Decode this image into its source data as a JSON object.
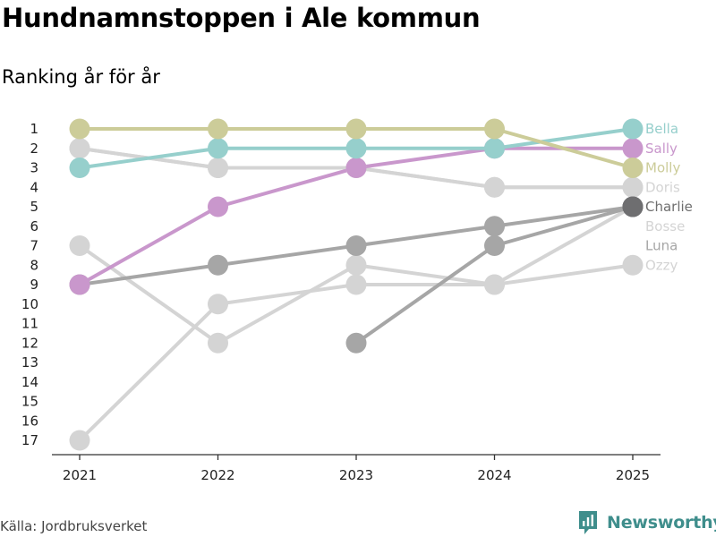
{
  "title": "Hundnamnstoppen i Ale kommun",
  "subtitle": "Ranking år för år",
  "source": "Källa: Jordbruksverket",
  "brand": {
    "name": "Newsworthy",
    "color": "#3f8e8c"
  },
  "chart_data": {
    "type": "line",
    "chart_kind": "bump",
    "x": [
      "2021",
      "2022",
      "2023",
      "2024",
      "2025"
    ],
    "y_ticks": [
      1,
      2,
      3,
      4,
      5,
      6,
      7,
      8,
      9,
      10,
      11,
      12,
      13,
      14,
      15,
      16,
      17
    ],
    "ylim": [
      1,
      17
    ],
    "y_reversed": true,
    "grid": false,
    "series": [
      {
        "name": "Ozzy",
        "values": [
          17,
          10,
          9,
          9,
          8
        ],
        "color": "#d4d4d4"
      },
      {
        "name": "Luna",
        "values": [
          7,
          12,
          8,
          9,
          5
        ],
        "color": "#d4d4d4"
      },
      {
        "name": "Bosse",
        "values": [
          2,
          3,
          3,
          4,
          4
        ],
        "color": "#d4d4d4"
      },
      {
        "name": "Doris",
        "values": [
          2,
          3,
          3,
          4,
          4
        ],
        "color": "#d4d4d4"
      },
      {
        "name": "Charlie",
        "values": [
          9,
          8,
          7,
          6,
          5
        ],
        "color": "#a6a6a6"
      },
      {
        "name": "",
        "values": [
          null,
          null,
          12,
          7,
          5
        ],
        "color": "#a6a6a6"
      },
      {
        "name": "Sally",
        "values": [
          9,
          5,
          3,
          2,
          2
        ],
        "color": "#c997cc"
      },
      {
        "name": "Bella",
        "values": [
          3,
          2,
          2,
          2,
          1
        ],
        "color": "#96cfcc"
      },
      {
        "name": "Molly",
        "values": [
          1,
          1,
          1,
          1,
          3
        ],
        "color": "#cccc99"
      }
    ],
    "end_labels": [
      {
        "text": "Bella",
        "rank": 1,
        "color": "#96cfcc"
      },
      {
        "text": "Sally",
        "rank": 2,
        "color": "#c997cc"
      },
      {
        "text": "Molly",
        "rank": 3,
        "color": "#cccc99"
      },
      {
        "text": "Doris",
        "rank": 4,
        "color": "#d4d4d4"
      },
      {
        "text": "Charlie",
        "rank": 5,
        "color": "#6e6e6e"
      },
      {
        "text": "Bosse",
        "rank": 6,
        "color": "#d4d4d4"
      },
      {
        "text": "Luna",
        "rank": 7,
        "color": "#a6a6a6"
      },
      {
        "text": "Ozzy",
        "rank": 8,
        "color": "#d4d4d4"
      }
    ],
    "end_point_color": "#6e6e70"
  }
}
